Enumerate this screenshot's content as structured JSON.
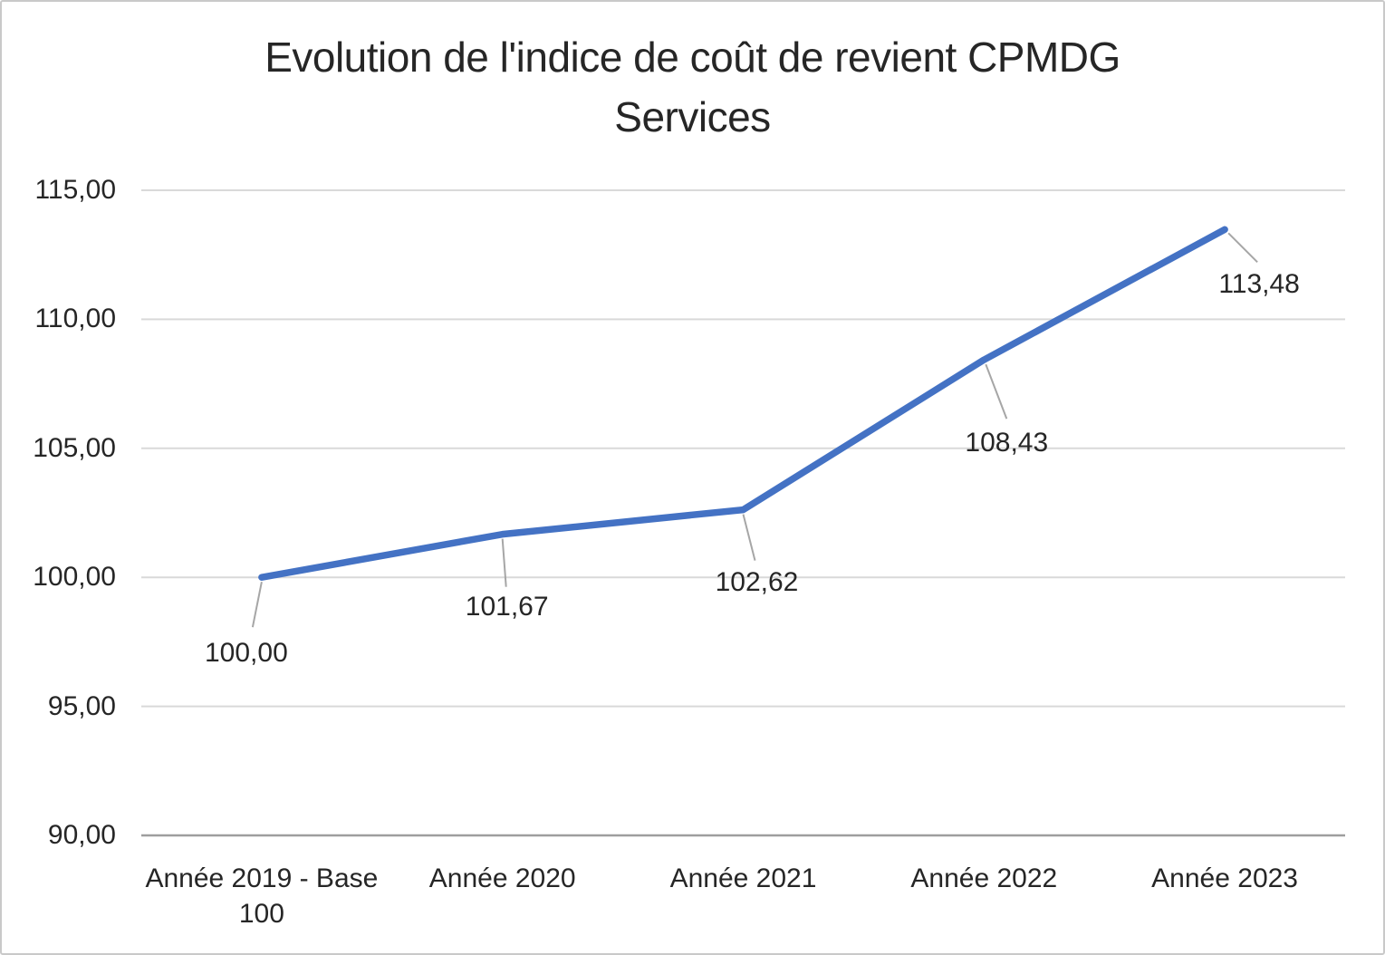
{
  "chart": {
    "title_line1": "Evolution de l'indice de coût de revient CPMDG",
    "title_line2": "Services"
  },
  "chart_data": {
    "type": "line",
    "title": "Evolution de l'indice de coût de revient CPMDG Services",
    "categories": [
      "Année 2019 - Base 100",
      "Année 2020",
      "Année 2021",
      "Année 2022",
      "Année 2023"
    ],
    "values": [
      100.0,
      101.67,
      102.62,
      108.43,
      113.48
    ],
    "point_labels": [
      "100,00",
      "101,67",
      "102,62",
      "108,43",
      "113,48"
    ],
    "yticks": [
      90,
      95,
      100,
      105,
      110,
      115
    ],
    "ytick_labels": [
      "90,00",
      "95,00",
      "100,00",
      "105,00",
      "110,00",
      "115,00"
    ],
    "ylim": [
      90,
      115
    ],
    "xlabel": "",
    "ylabel": "",
    "grid": true,
    "legend": false,
    "line_color": "#4472C4",
    "gridline_color": "#D9D9D9",
    "axis_line_color": "#9E9E9E",
    "leader_line_color": "#A6A6A6",
    "text_color": "#262626"
  }
}
